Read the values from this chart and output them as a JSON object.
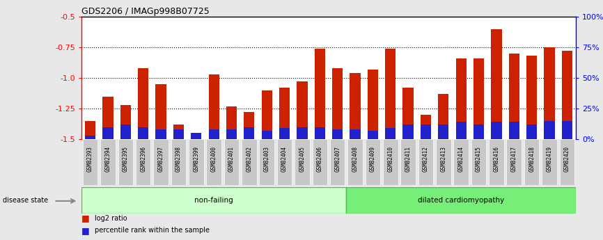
{
  "title": "GDS2206 / IMAGp998B07725",
  "samples": [
    "GSM82393",
    "GSM82394",
    "GSM82395",
    "GSM82396",
    "GSM82397",
    "GSM82398",
    "GSM82399",
    "GSM82400",
    "GSM82401",
    "GSM82402",
    "GSM82403",
    "GSM82404",
    "GSM82405",
    "GSM82406",
    "GSM82407",
    "GSM82408",
    "GSM82409",
    "GSM82410",
    "GSM82411",
    "GSM82412",
    "GSM82413",
    "GSM82414",
    "GSM82415",
    "GSM82416",
    "GSM82417",
    "GSM82418",
    "GSM82419",
    "GSM82420"
  ],
  "log2_ratio": [
    -1.35,
    -1.15,
    -1.22,
    -0.92,
    -1.05,
    -1.38,
    -1.5,
    -0.97,
    -1.23,
    -1.28,
    -1.1,
    -1.08,
    -1.03,
    -0.76,
    -0.92,
    -0.96,
    -0.93,
    -0.76,
    -1.08,
    -1.3,
    -1.13,
    -0.84,
    -0.84,
    -0.6,
    -0.8,
    -0.82,
    -0.75,
    -0.78
  ],
  "percentile_rank": [
    3,
    10,
    12,
    10,
    8,
    8,
    5,
    8,
    8,
    10,
    7,
    9,
    10,
    10,
    8,
    8,
    7,
    9,
    12,
    12,
    12,
    14,
    12,
    14,
    14,
    12,
    15,
    15
  ],
  "nonfailing_count": 15,
  "dilated_count": 13,
  "bar_color": "#cc2200",
  "blue_color": "#2222cc",
  "nonfailing_bg": "#ccffcc",
  "dilated_bg": "#77ee77",
  "tick_label_bg": "#c8c8c8",
  "ylim": [
    -1.5,
    -0.5
  ],
  "yticks": [
    -1.5,
    -1.25,
    -1.0,
    -0.75,
    -0.5
  ],
  "yticks_right": [
    0,
    25,
    50,
    75,
    100
  ],
  "dotted_lines": [
    -1.25,
    -1.0,
    -0.75
  ],
  "fig_bg": "#e8e8e8",
  "plot_bg": "#ffffff",
  "bar_width": 0.6
}
